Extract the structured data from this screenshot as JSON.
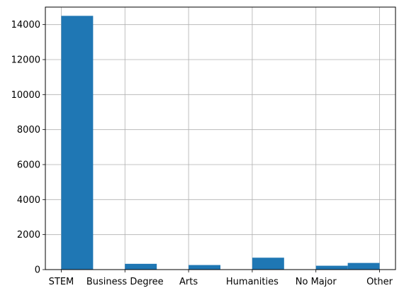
{
  "chart_data": {
    "type": "bar",
    "title": "",
    "xlabel": "",
    "ylabel": "",
    "categories": [
      "STEM",
      "Business Degree",
      "Arts",
      "Humanities",
      "No Major",
      "Other"
    ],
    "bars": [
      {
        "x_start": 0.0,
        "x_end": 0.5,
        "value": 14500
      },
      {
        "x_start": 1.0,
        "x_end": 1.5,
        "value": 330
      },
      {
        "x_start": 2.0,
        "x_end": 2.5,
        "value": 260
      },
      {
        "x_start": 3.0,
        "x_end": 3.5,
        "value": 680
      },
      {
        "x_start": 4.0,
        "x_end": 4.5,
        "value": 220
      },
      {
        "x_start": 4.5,
        "x_end": 5.0,
        "value": 380
      }
    ],
    "xlim": [
      -0.25,
      5.25
    ],
    "ylim": [
      0,
      15000
    ],
    "y_ticks": [
      0,
      2000,
      4000,
      6000,
      8000,
      10000,
      12000,
      14000
    ],
    "x_ticks": [
      0,
      1,
      2,
      3,
      4,
      5
    ],
    "grid": true,
    "colors": {
      "bar": "#1f77b4",
      "grid": "#b0b0b0",
      "axis": "#000000"
    }
  }
}
